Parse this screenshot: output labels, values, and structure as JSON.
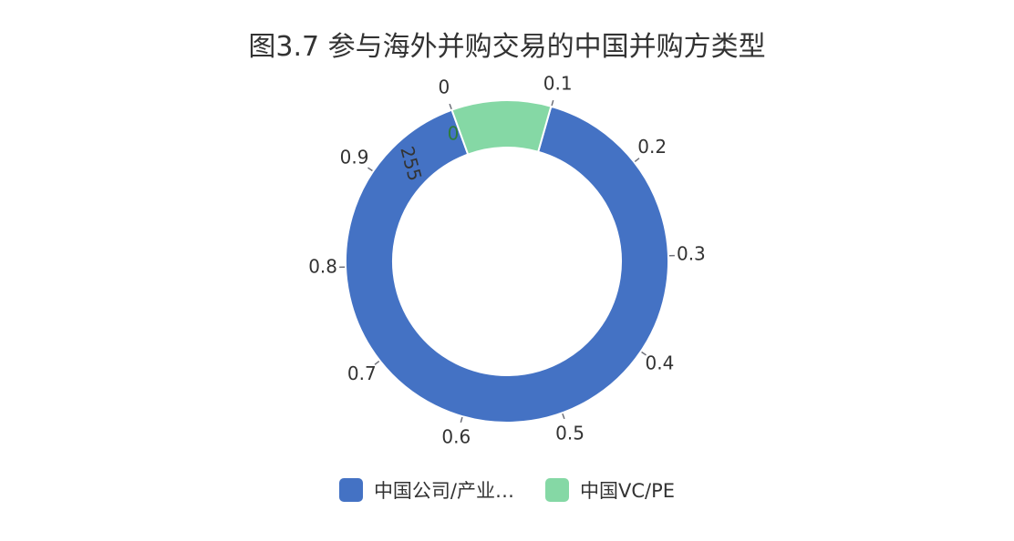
{
  "chart_data": {
    "type": "pie",
    "title": "图3.7 参与海外并购交易的中国并购方类型",
    "series": [
      {
        "name": "中国公司/产业…",
        "value": 2305,
        "color": "#4472C4"
      },
      {
        "name": "中国VC/PE",
        "value": 255,
        "color": "#85D8A5"
      }
    ],
    "axis_ticks": [
      "0",
      "0.1",
      "0.2",
      "0.3",
      "0.4",
      "0.5",
      "0.6",
      "0.7",
      "0.8",
      "0.9"
    ],
    "data_labels": [
      "255",
      "0"
    ]
  }
}
